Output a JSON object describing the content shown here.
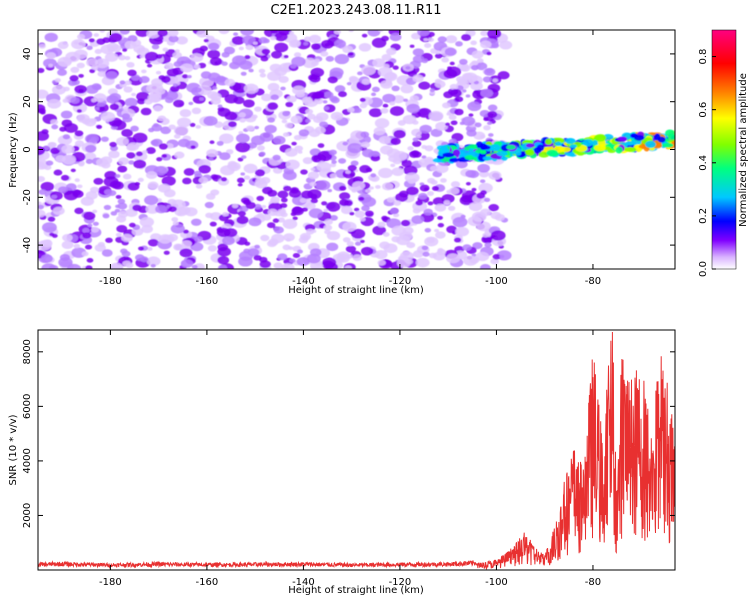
{
  "title": "C2E1.2023.243.08.11.R11",
  "chart_data": [
    {
      "type": "heatmap",
      "title": "C2E1.2023.243.08.11.R11",
      "xlabel": "Height of straight line (km)",
      "ylabel": "Frequency (Hz)",
      "xlim": [
        -195,
        -63
      ],
      "ylim": [
        -50,
        50
      ],
      "xticks": [
        -180,
        -160,
        -140,
        -120,
        -100,
        -80
      ],
      "yticks": [
        -40,
        -20,
        0,
        20,
        40
      ],
      "grid": false,
      "noise_region": {
        "x_range": [
          -195,
          -104
        ],
        "amplitude_range": [
          0.0,
          0.12
        ]
      },
      "signal_band": {
        "x_range": [
          -112,
          -63
        ],
        "frequency_hz": [
          0,
          2.5
        ],
        "amplitude_range": [
          0.2,
          0.8
        ]
      },
      "colorbar": {
        "label": "Normalized spectral amplitude",
        "ticks": [
          0.0,
          0.2,
          0.4,
          0.6,
          0.8
        ],
        "range": [
          0.0,
          0.9
        ],
        "colors": [
          "#ffffff",
          "#d9b3ff",
          "#8000ff",
          "#0000ff",
          "#00c8ff",
          "#00ff80",
          "#80ff00",
          "#ffff00",
          "#ff8000",
          "#ff0000",
          "#ff0080"
        ]
      }
    },
    {
      "type": "line",
      "xlabel": "Height of straight line (km)",
      "ylabel": "SNR (10 * v/v)",
      "xlim": [
        -195,
        -63
      ],
      "ylim": [
        0,
        8800
      ],
      "xticks": [
        -180,
        -160,
        -140,
        -120,
        -100,
        -80
      ],
      "yticks": [
        2000,
        4000,
        6000,
        8000
      ],
      "grid": false,
      "series": [
        {
          "color": "#e83030",
          "x": [
            -195,
            -190,
            -180,
            -170,
            -160,
            -150,
            -140,
            -130,
            -120,
            -110,
            -104,
            -100,
            -98,
            -96,
            -94,
            -92,
            -90,
            -88,
            -86,
            -84,
            -82,
            -80,
            -78,
            -76,
            -75,
            -74,
            -72,
            -70,
            -68,
            -66,
            -64,
            -63
          ],
          "y": [
            200,
            220,
            180,
            210,
            190,
            200,
            210,
            180,
            200,
            210,
            260,
            350,
            600,
            900,
            1300,
            800,
            500,
            1500,
            3000,
            4300,
            3500,
            7500,
            4500,
            8600,
            3000,
            7700,
            6400,
            7200,
            5000,
            7500,
            6000,
            4500
          ]
        }
      ]
    }
  ]
}
